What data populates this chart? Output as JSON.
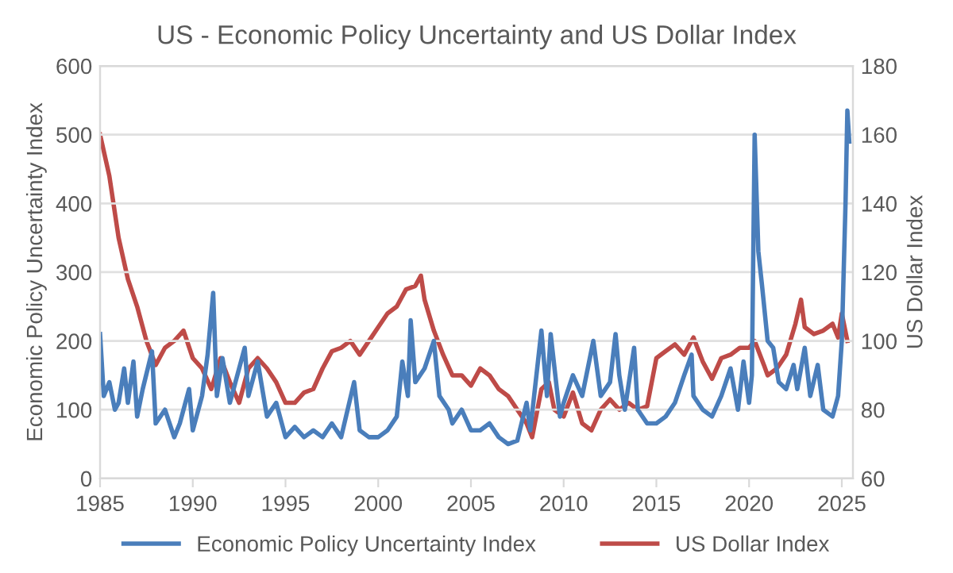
{
  "chart_data": {
    "type": "line",
    "title": "US - Economic Policy Uncertainty and US Dollar Index",
    "ylabel": "Economic Policy Uncertainty Index",
    "y2label": "US Dollar Index",
    "xlim": [
      1985,
      2025.6
    ],
    "xticks": [
      1985,
      1990,
      1995,
      2000,
      2005,
      2010,
      2015,
      2020,
      2025
    ],
    "ylim": [
      0,
      600
    ],
    "yticks": [
      0,
      100,
      200,
      300,
      400,
      500,
      600
    ],
    "y2lim": [
      60,
      180
    ],
    "y2ticks": [
      60,
      80,
      100,
      120,
      140,
      160,
      180
    ],
    "grid": "y",
    "legend": "bottom",
    "marker": "none",
    "line_style": "solid",
    "series": [
      {
        "name": "Economic Policy Uncertainty Index",
        "color": "#4a7ebb",
        "x": [
          1985,
          1985.2,
          1985.5,
          1985.8,
          1986,
          1986.3,
          1986.5,
          1986.8,
          1987,
          1987.3,
          1987.8,
          1988,
          1988.5,
          1989,
          1989.3,
          1989.8,
          1990,
          1990.5,
          1990.8,
          1991.1,
          1991.3,
          1991.6,
          1992,
          1992.5,
          1992.8,
          1993,
          1993.5,
          1994,
          1994.5,
          1995,
          1995.5,
          1996,
          1996.5,
          1997,
          1997.5,
          1998,
          1998.7,
          1999,
          1999.5,
          2000,
          2000.5,
          2001,
          2001.3,
          2001.6,
          2001.75,
          2002,
          2002.5,
          2003,
          2003.3,
          2003.8,
          2004,
          2004.5,
          2005,
          2005.5,
          2006,
          2006.5,
          2007,
          2007.5,
          2008,
          2008.2,
          2008.8,
          2009.1,
          2009.3,
          2009.8,
          2010,
          2010.5,
          2011,
          2011.6,
          2012,
          2012.5,
          2012.8,
          2013,
          2013.3,
          2013.8,
          2014,
          2014.5,
          2015,
          2015.5,
          2016,
          2016.5,
          2016.9,
          2017,
          2017.5,
          2018,
          2018.5,
          2019,
          2019.4,
          2019.7,
          2020,
          2020.15,
          2020.3,
          2020.5,
          2020.7,
          2021,
          2021.3,
          2021.6,
          2022,
          2022.4,
          2022.6,
          2023,
          2023.3,
          2023.7,
          2024,
          2024.5,
          2024.8,
          2025,
          2025.2,
          2025.3,
          2025.4
        ],
        "values": [
          210,
          120,
          140,
          100,
          110,
          160,
          110,
          170,
          90,
          130,
          185,
          80,
          100,
          60,
          80,
          130,
          70,
          120,
          180,
          270,
          120,
          175,
          110,
          160,
          190,
          120,
          170,
          90,
          110,
          60,
          75,
          60,
          70,
          60,
          80,
          60,
          140,
          70,
          60,
          60,
          70,
          90,
          170,
          120,
          230,
          140,
          160,
          200,
          120,
          100,
          80,
          100,
          70,
          70,
          80,
          60,
          50,
          55,
          110,
          70,
          215,
          120,
          210,
          90,
          110,
          150,
          120,
          200,
          120,
          140,
          210,
          150,
          100,
          190,
          100,
          80,
          80,
          90,
          110,
          150,
          180,
          120,
          100,
          90,
          120,
          160,
          100,
          170,
          110,
          150,
          500,
          330,
          280,
          200,
          190,
          140,
          130,
          165,
          130,
          190,
          120,
          165,
          100,
          90,
          120,
          200,
          400,
          535,
          490
        ]
      },
      {
        "name": "US Dollar Index",
        "color": "#be4b48",
        "axis": "y2",
        "x": [
          1985,
          1985.5,
          1986,
          1986.5,
          1987,
          1987.5,
          1988,
          1988.5,
          1989,
          1989.5,
          1990,
          1990.5,
          1991,
          1991.5,
          1992,
          1992.5,
          1993,
          1993.5,
          1994,
          1994.5,
          1995,
          1995.5,
          1996,
          1996.5,
          1997,
          1997.5,
          1998,
          1998.5,
          1999,
          1999.5,
          2000,
          2000.5,
          2001,
          2001.5,
          2002,
          2002.3,
          2002.5,
          2003,
          2003.5,
          2004,
          2004.5,
          2005,
          2005.5,
          2006,
          2006.5,
          2007,
          2007.5,
          2008,
          2008.3,
          2008.8,
          2009.2,
          2009.5,
          2010,
          2010.5,
          2011,
          2011.5,
          2012,
          2012.5,
          2013,
          2013.5,
          2014,
          2014.5,
          2015,
          2015.5,
          2016,
          2016.5,
          2017,
          2017.5,
          2018,
          2018.5,
          2019,
          2019.5,
          2020,
          2020.3,
          2020.8,
          2021,
          2021.5,
          2022,
          2022.5,
          2022.8,
          2023,
          2023.5,
          2024,
          2024.5,
          2024.8,
          2025,
          2025.3
        ],
        "values": [
          160,
          148,
          130,
          118,
          110,
          100,
          93,
          98,
          100,
          103,
          95,
          92,
          86,
          95,
          88,
          82,
          92,
          95,
          92,
          88,
          82,
          82,
          85,
          86,
          92,
          97,
          98,
          100,
          96,
          100,
          104,
          108,
          110,
          115,
          116,
          119,
          112,
          103,
          96,
          90,
          90,
          87,
          92,
          90,
          86,
          84,
          80,
          76,
          72,
          86,
          88,
          80,
          78,
          85,
          76,
          74,
          80,
          83,
          80,
          82,
          80,
          81,
          95,
          97,
          99,
          96,
          101,
          94,
          89,
          95,
          96,
          98,
          98,
          100,
          93,
          90,
          92,
          96,
          105,
          112,
          104,
          102,
          103,
          105,
          101,
          108,
          100
        ]
      }
    ]
  }
}
